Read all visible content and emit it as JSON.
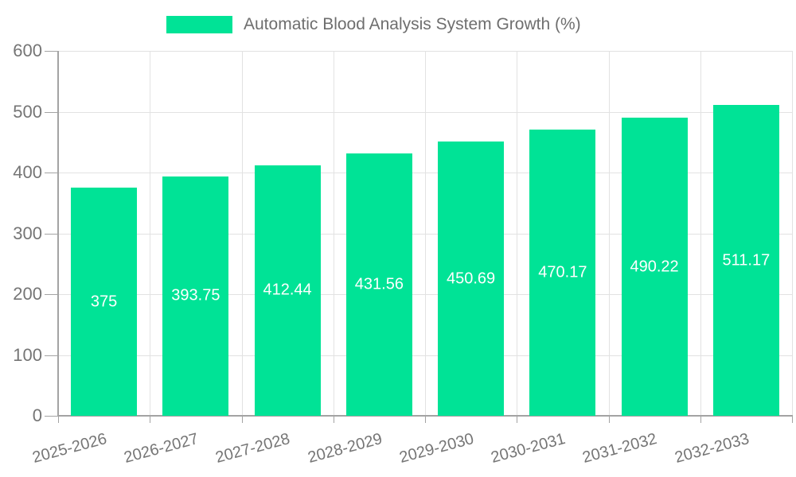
{
  "chart_data": {
    "type": "bar",
    "title": "Automatic Blood Analysis System Growth (%)",
    "categories": [
      "2025-2026",
      "2026-2027",
      "2027-2028",
      "2028-2029",
      "2029-2030",
      "2030-2031",
      "2031-2032",
      "2032-2033"
    ],
    "values": [
      375,
      393.75,
      412.44,
      431.56,
      450.69,
      470.17,
      490.22,
      511.17
    ],
    "value_labels": [
      "375",
      "393.75",
      "412.44",
      "431.56",
      "450.69",
      "470.17",
      "490.22",
      "511.17"
    ],
    "xlabel": "",
    "ylabel": "",
    "ylim": [
      0,
      600
    ],
    "y_ticks": [
      0,
      100,
      200,
      300,
      400,
      500,
      600
    ],
    "grid": true,
    "legend": {
      "position": "top",
      "label": "Automatic Blood Analysis System Growth (%)"
    },
    "colors": {
      "bar": "#00E396",
      "axis": "#a3a3a3",
      "grid": "#e2e2e2",
      "tick_text": "#757575",
      "legend_text": "#6e6e6e",
      "value_label": "#ffffff",
      "background": "#ffffff"
    }
  }
}
